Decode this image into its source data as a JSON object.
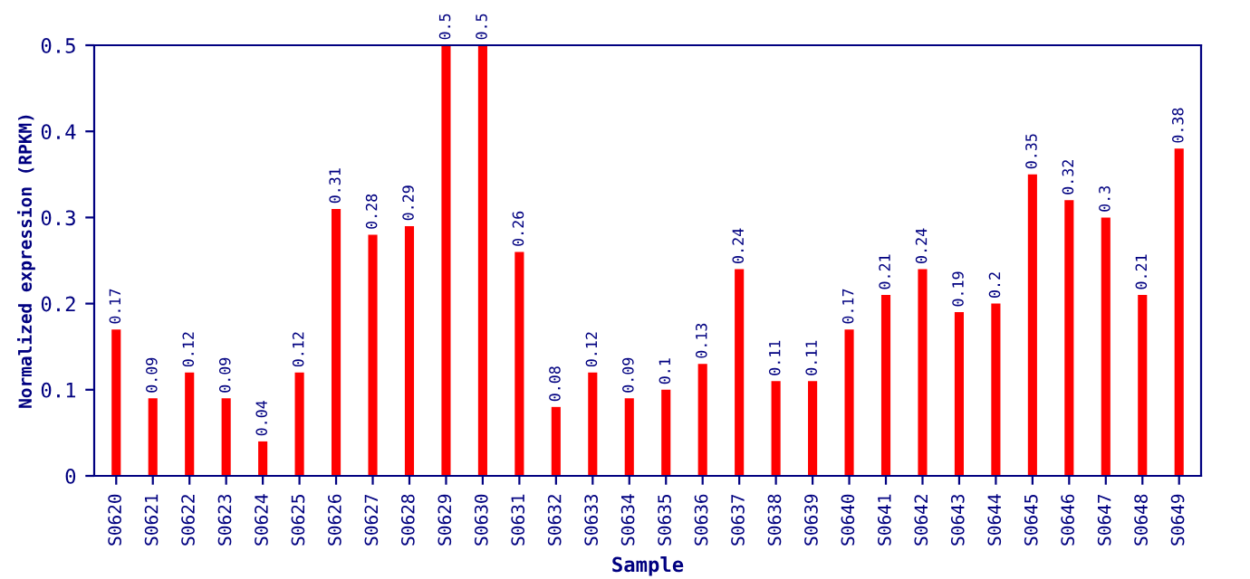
{
  "chart_data": {
    "type": "bar",
    "xlabel": "Sample",
    "ylabel": "Normalized expression (RPKM)",
    "categories": [
      "S0620",
      "S0621",
      "S0622",
      "S0623",
      "S0624",
      "S0625",
      "S0626",
      "S0627",
      "S0628",
      "S0629",
      "S0630",
      "S0631",
      "S0632",
      "S0633",
      "S0634",
      "S0635",
      "S0636",
      "S0637",
      "S0638",
      "S0639",
      "S0640",
      "S0641",
      "S0642",
      "S0643",
      "S0644",
      "S0645",
      "S0646",
      "S0647",
      "S0648",
      "S0649"
    ],
    "values": [
      0.17,
      0.09,
      0.12,
      0.09,
      0.04,
      0.12,
      0.31,
      0.28,
      0.29,
      0.5,
      0.5,
      0.26,
      0.08,
      0.12,
      0.09,
      0.1,
      0.13,
      0.24,
      0.11,
      0.11,
      0.17,
      0.21,
      0.24,
      0.19,
      0.2,
      0.35,
      0.32,
      0.3,
      0.21,
      0.38
    ],
    "value_labels": [
      "0.17",
      "0.09",
      "0.12",
      "0.09",
      "0.04",
      "0.12",
      "0.31",
      "0.28",
      "0.29",
      "0.5",
      "0.5",
      "0.26",
      "0.08",
      "0.12",
      "0.09",
      "0.1",
      "0.13",
      "0.24",
      "0.11",
      "0.11",
      "0.17",
      "0.21",
      "0.24",
      "0.19",
      "0.2",
      "0.35",
      "0.32",
      "0.3",
      "0.21",
      "0.38"
    ],
    "color": "#ff0000",
    "ylim": [
      0,
      0.5
    ],
    "yticks": [
      0,
      0.1,
      0.2,
      0.3,
      0.4,
      0.5
    ],
    "grid": false,
    "legend": false
  }
}
